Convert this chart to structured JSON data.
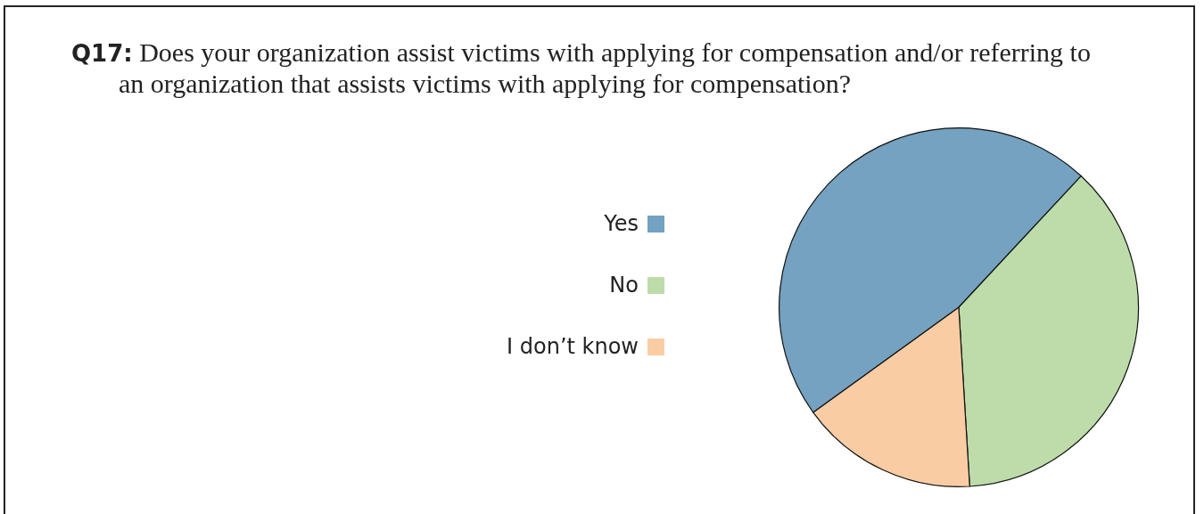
{
  "chart_data": {
    "type": "pie",
    "title": "Q17: Does your organization assist victims with applying for compensation and/or referring to an organization that assists victims with applying for compensation?",
    "categories": [
      "Yes",
      "No",
      "I don’t know"
    ],
    "values": [
      46.9,
      37.1,
      16.0
    ],
    "colors": [
      "#74a2c0",
      "#bddcaa",
      "#facca3"
    ],
    "legend": "left"
  }
}
